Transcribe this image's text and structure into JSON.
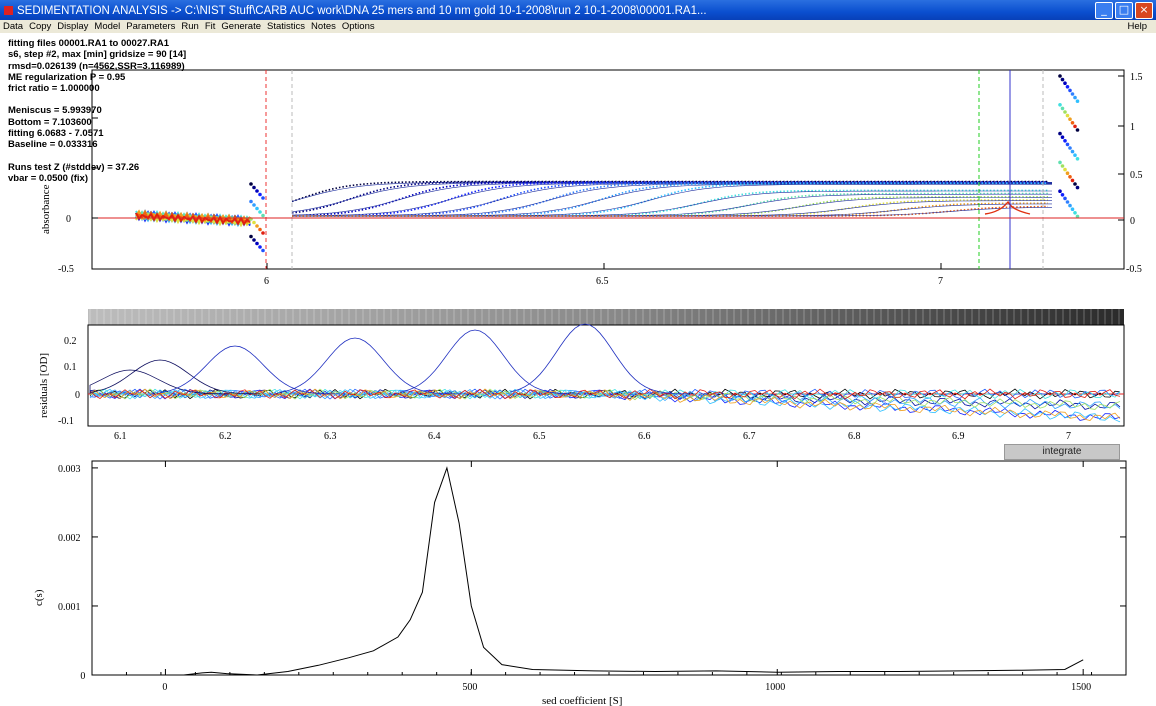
{
  "window": {
    "title": "SEDIMENTATION ANALYSIS -> C:\\NIST Stuff\\CARB AUC work\\DNA 25 mers and 10 nm gold 10-1-2008\\run 2 10-1-2008\\00001.RA1...",
    "buttons": [
      "_",
      "□",
      "×"
    ]
  },
  "menu": {
    "items": [
      "Data",
      "Copy",
      "Display",
      "Model",
      "Parameters",
      "Run",
      "Fit",
      "Generate",
      "Statistics",
      "Notes",
      "Options"
    ],
    "help": "Help"
  },
  "fit_info": {
    "files": "fitting files 00001.RA1 to 00027.RA1",
    "step": "s6, step #2, max [min] gridsize = 90 [14]",
    "rmsd": "rmsd=0.026139 (n=4562,SSR=3.116989)",
    "regularization": "ME regularization P = 0.95",
    "frict": "frict ratio = 1.000000",
    "meniscus": "Meniscus = 5.993970",
    "bottom": "Bottom = 7.103600",
    "fitting": "fitting 6.0683 - 7.0571",
    "baseline": "Baseline = 0.033316",
    "runs_test": "Runs test Z (#stddev) = 37.26",
    "vbar": "vbar = 0.0500 (fix)"
  },
  "top_plot": {
    "ylabel": "absorbance",
    "x_ticks": [
      "6",
      "6.5",
      "7"
    ],
    "y_ticks": [
      "1.5",
      "1",
      "0.5",
      "0",
      "-0.5"
    ]
  },
  "residual_plot": {
    "ylabel": "residuals [OD]",
    "y_ticks": [
      "0.2",
      "0.1",
      "0",
      "-0.1"
    ],
    "x_ticks": [
      "6.1",
      "6.2",
      "6.3",
      "6.4",
      "6.5",
      "6.6",
      "6.7",
      "6.8",
      "6.9",
      "7"
    ]
  },
  "integrate_button": "integrate",
  "chart_data": {
    "type": "line",
    "title": "",
    "xlabel": "sed coefficient [S]",
    "ylabel": "c(s)",
    "xlim": [
      -120,
      1570
    ],
    "ylim": [
      0,
      0.0031
    ],
    "x_ticks": [
      "0",
      "500",
      "1000",
      "1500"
    ],
    "y_ticks": [
      "0",
      "0.001",
      "0.002",
      "0.003"
    ],
    "series": [
      {
        "x": [
          0,
          30,
          60,
          75,
          100,
          150,
          200,
          250,
          300,
          340,
          380,
          400,
          420,
          440,
          460,
          480,
          500,
          520,
          550,
          600,
          700,
          800,
          900,
          1000,
          1100,
          1200,
          1300,
          1400,
          1470,
          1500
        ],
        "y": [
          0,
          0,
          3e-05,
          4e-05,
          2e-05,
          0,
          5e-05,
          0.00014,
          0.00025,
          0.00035,
          0.00055,
          0.0008,
          0.0012,
          0.0025,
          0.003,
          0.0022,
          0.001,
          0.0004,
          0.00015,
          8e-05,
          6e-05,
          5e-05,
          6e-05,
          4e-05,
          5e-05,
          5e-05,
          6e-05,
          7e-05,
          8e-05,
          0.00022
        ]
      }
    ]
  }
}
